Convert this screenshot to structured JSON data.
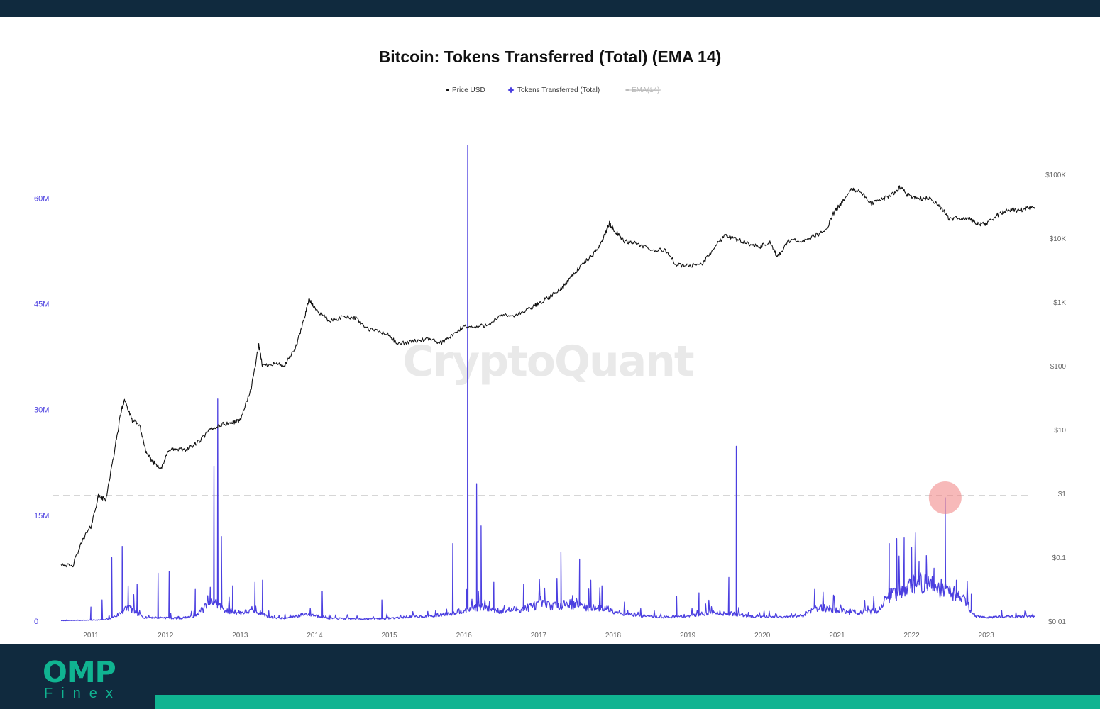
{
  "chart_data": {
    "type": "line",
    "title": "Bitcoin: Tokens Transferred (Total) (EMA 14)",
    "watermark": "CryptoQuant",
    "legend": {
      "placement": "top-center",
      "items": [
        {
          "label": "Price USD",
          "color": "#111111",
          "marker": "circle",
          "active": true
        },
        {
          "label": "Tokens Transferred (Total)",
          "color": "#4b3fe0",
          "marker": "diamond",
          "active": true
        },
        {
          "label": "EMA(14)",
          "color": "#b8b8b8",
          "marker": "circle",
          "active": false
        }
      ]
    },
    "x": {
      "type": "time",
      "range": [
        2010.6,
        2023.65
      ],
      "ticks": [
        "2011",
        "2012",
        "2013",
        "2014",
        "2015",
        "2016",
        "2017",
        "2018",
        "2019",
        "2020",
        "2021",
        "2022",
        "2023"
      ]
    },
    "y_left": {
      "label": "",
      "range": [
        0,
        70000000
      ],
      "ticks": [
        {
          "value": 0,
          "label": "0"
        },
        {
          "value": 15000000,
          "label": "15M"
        },
        {
          "value": 30000000,
          "label": "30M"
        },
        {
          "value": 45000000,
          "label": "45M"
        },
        {
          "value": 60000000,
          "label": "60M"
        }
      ]
    },
    "y_right": {
      "label": "",
      "scale": "log",
      "range": [
        0.01,
        100000
      ],
      "ticks": [
        {
          "value": 0.01,
          "label": "$0.01"
        },
        {
          "value": 0.1,
          "label": "$0.1"
        },
        {
          "value": 1,
          "label": "$1"
        },
        {
          "value": 10,
          "label": "$10"
        },
        {
          "value": 100,
          "label": "$100"
        },
        {
          "value": 1000,
          "label": "$1K"
        },
        {
          "value": 10000,
          "label": "$10K"
        },
        {
          "value": 100000,
          "label": "$100K"
        }
      ]
    },
    "reference_line": {
      "axis": "left",
      "value": 17800000,
      "style": "dashed",
      "color": "#c9c9c9"
    },
    "highlight": {
      "series": "Tokens Transferred (Total)",
      "x": 2022.45,
      "y": 17500000,
      "color": "#f08080"
    },
    "grid": false,
    "series": [
      {
        "name": "Price USD",
        "axis": "right",
        "color": "#111111",
        "points": [
          [
            2010.6,
            0.08
          ],
          [
            2010.75,
            0.07
          ],
          [
            2010.9,
            0.2
          ],
          [
            2011.0,
            0.3
          ],
          [
            2011.1,
            0.9
          ],
          [
            2011.2,
            0.8
          ],
          [
            2011.3,
            3.5
          ],
          [
            2011.4,
            18
          ],
          [
            2011.45,
            30
          ],
          [
            2011.55,
            14
          ],
          [
            2011.65,
            12
          ],
          [
            2011.75,
            4
          ],
          [
            2011.85,
            3
          ],
          [
            2011.95,
            2.5
          ],
          [
            2012.05,
            5
          ],
          [
            2012.15,
            4.8
          ],
          [
            2012.3,
            5
          ],
          [
            2012.45,
            6.5
          ],
          [
            2012.6,
            10
          ],
          [
            2012.75,
            12
          ],
          [
            2012.9,
            13
          ],
          [
            2013.0,
            14
          ],
          [
            2013.15,
            45
          ],
          [
            2013.25,
            210
          ],
          [
            2013.3,
            100
          ],
          [
            2013.45,
            110
          ],
          [
            2013.6,
            100
          ],
          [
            2013.75,
            200
          ],
          [
            2013.85,
            500
          ],
          [
            2013.92,
            1100
          ],
          [
            2014.0,
            800
          ],
          [
            2014.2,
            500
          ],
          [
            2014.4,
            600
          ],
          [
            2014.55,
            560
          ],
          [
            2014.7,
            380
          ],
          [
            2014.85,
            350
          ],
          [
            2015.0,
            300
          ],
          [
            2015.1,
            220
          ],
          [
            2015.3,
            240
          ],
          [
            2015.5,
            260
          ],
          [
            2015.7,
            230
          ],
          [
            2015.85,
            300
          ],
          [
            2016.0,
            420
          ],
          [
            2016.15,
            400
          ],
          [
            2016.3,
            440
          ],
          [
            2016.5,
            600
          ],
          [
            2016.7,
            620
          ],
          [
            2016.9,
            800
          ],
          [
            2017.0,
            950
          ],
          [
            2017.15,
            1200
          ],
          [
            2017.3,
            1600
          ],
          [
            2017.45,
            2600
          ],
          [
            2017.6,
            4000
          ],
          [
            2017.75,
            5800
          ],
          [
            2017.85,
            9000
          ],
          [
            2017.95,
            17000
          ],
          [
            2018.0,
            14000
          ],
          [
            2018.15,
            9000
          ],
          [
            2018.3,
            8500
          ],
          [
            2018.5,
            6500
          ],
          [
            2018.7,
            6500
          ],
          [
            2018.85,
            3800
          ],
          [
            2019.0,
            3700
          ],
          [
            2019.2,
            4000
          ],
          [
            2019.35,
            7000
          ],
          [
            2019.5,
            11500
          ],
          [
            2019.6,
            10000
          ],
          [
            2019.8,
            8500
          ],
          [
            2019.95,
            7200
          ],
          [
            2020.1,
            8500
          ],
          [
            2020.2,
            5000
          ],
          [
            2020.35,
            9000
          ],
          [
            2020.55,
            9200
          ],
          [
            2020.7,
            11000
          ],
          [
            2020.85,
            13000
          ],
          [
            2020.95,
            24000
          ],
          [
            2021.05,
            35000
          ],
          [
            2021.2,
            58000
          ],
          [
            2021.3,
            55000
          ],
          [
            2021.45,
            35000
          ],
          [
            2021.6,
            40000
          ],
          [
            2021.75,
            50000
          ],
          [
            2021.85,
            64000
          ],
          [
            2021.95,
            47000
          ],
          [
            2022.1,
            42000
          ],
          [
            2022.25,
            42000
          ],
          [
            2022.4,
            30000
          ],
          [
            2022.5,
            20000
          ],
          [
            2022.65,
            21000
          ],
          [
            2022.8,
            19500
          ],
          [
            2022.9,
            16500
          ],
          [
            2023.0,
            16700
          ],
          [
            2023.15,
            23000
          ],
          [
            2023.3,
            28000
          ],
          [
            2023.45,
            27000
          ],
          [
            2023.55,
            30000
          ],
          [
            2023.65,
            29000
          ]
        ]
      },
      {
        "name": "Tokens Transferred (Total)",
        "axis": "left",
        "color": "#4b3fe0",
        "baseline": [
          [
            2010.6,
            80000
          ],
          [
            2010.9,
            150000
          ],
          [
            2011.2,
            250000
          ],
          [
            2011.35,
            1000000
          ],
          [
            2011.5,
            2500000
          ],
          [
            2011.7,
            700000
          ],
          [
            2012.0,
            600000
          ],
          [
            2012.2,
            500000
          ],
          [
            2012.4,
            900000
          ],
          [
            2012.5,
            2200000
          ],
          [
            2012.65,
            3500000
          ],
          [
            2012.8,
            2000000
          ],
          [
            2013.0,
            1500000
          ],
          [
            2013.2,
            1800000
          ],
          [
            2013.4,
            700000
          ],
          [
            2013.6,
            500000
          ],
          [
            2013.9,
            1300000
          ],
          [
            2014.2,
            500000
          ],
          [
            2014.6,
            400000
          ],
          [
            2015.0,
            500000
          ],
          [
            2015.3,
            800000
          ],
          [
            2015.6,
            900000
          ],
          [
            2015.85,
            1500000
          ],
          [
            2016.0,
            2000000
          ],
          [
            2016.2,
            2600000
          ],
          [
            2016.5,
            1800000
          ],
          [
            2016.8,
            2200000
          ],
          [
            2017.0,
            3000000
          ],
          [
            2017.2,
            2800000
          ],
          [
            2017.4,
            3200000
          ],
          [
            2017.6,
            2600000
          ],
          [
            2017.9,
            2300000
          ],
          [
            2018.1,
            1500000
          ],
          [
            2018.4,
            900000
          ],
          [
            2018.7,
            700000
          ],
          [
            2019.0,
            900000
          ],
          [
            2019.3,
            1600000
          ],
          [
            2019.6,
            1300000
          ],
          [
            2019.8,
            1000000
          ],
          [
            2020.0,
            800000
          ],
          [
            2020.3,
            700000
          ],
          [
            2020.55,
            1000000
          ],
          [
            2020.7,
            2500000
          ],
          [
            2020.9,
            2200000
          ],
          [
            2021.1,
            1800000
          ],
          [
            2021.35,
            1400000
          ],
          [
            2021.55,
            2000000
          ],
          [
            2021.7,
            4500000
          ],
          [
            2021.9,
            6000000
          ],
          [
            2022.1,
            7000000
          ],
          [
            2022.3,
            6500000
          ],
          [
            2022.5,
            5500000
          ],
          [
            2022.7,
            4000000
          ],
          [
            2022.85,
            900000
          ],
          [
            2023.0,
            700000
          ],
          [
            2023.3,
            800000
          ],
          [
            2023.65,
            900000
          ]
        ],
        "spikes": [
          [
            2011.0,
            2000000
          ],
          [
            2011.15,
            3000000
          ],
          [
            2011.28,
            9000000
          ],
          [
            2011.42,
            10600000
          ],
          [
            2011.5,
            5000000
          ],
          [
            2011.62,
            5200000
          ],
          [
            2011.9,
            6800000
          ],
          [
            2012.05,
            7000000
          ],
          [
            2012.4,
            4500000
          ],
          [
            2012.6,
            4800000
          ],
          [
            2012.65,
            22000000
          ],
          [
            2012.7,
            31500000
          ],
          [
            2012.75,
            12000000
          ],
          [
            2012.9,
            5000000
          ],
          [
            2013.2,
            5500000
          ],
          [
            2013.3,
            5800000
          ],
          [
            2014.1,
            4200000
          ],
          [
            2014.9,
            3000000
          ],
          [
            2015.85,
            11000000
          ],
          [
            2016.05,
            67500000
          ],
          [
            2016.17,
            19500000
          ],
          [
            2016.23,
            13500000
          ],
          [
            2016.4,
            5500000
          ],
          [
            2016.8,
            5200000
          ],
          [
            2017.3,
            9800000
          ],
          [
            2017.55,
            8800000
          ],
          [
            2017.7,
            5800000
          ],
          [
            2017.85,
            5000000
          ],
          [
            2018.85,
            3500000
          ],
          [
            2019.15,
            4000000
          ],
          [
            2019.55,
            6200000
          ],
          [
            2019.65,
            24800000
          ],
          [
            2020.7,
            4500000
          ],
          [
            2021.7,
            11000000
          ],
          [
            2021.8,
            11700000
          ],
          [
            2021.9,
            11800000
          ],
          [
            2022.0,
            10500000
          ],
          [
            2022.1,
            8500000
          ],
          [
            2022.2,
            8000000
          ],
          [
            2022.3,
            7500000
          ],
          [
            2022.45,
            17500000
          ],
          [
            2022.6,
            5800000
          ],
          [
            2022.8,
            3800000
          ]
        ]
      }
    ]
  },
  "branding": {
    "logo_text": "OMP",
    "logo_subtext": "Finex"
  },
  "colors": {
    "header_footer": "#102a3e",
    "accent": "#10b491",
    "price_line": "#111111",
    "tokens_line": "#4b3fe0",
    "highlight": "#f08080"
  }
}
